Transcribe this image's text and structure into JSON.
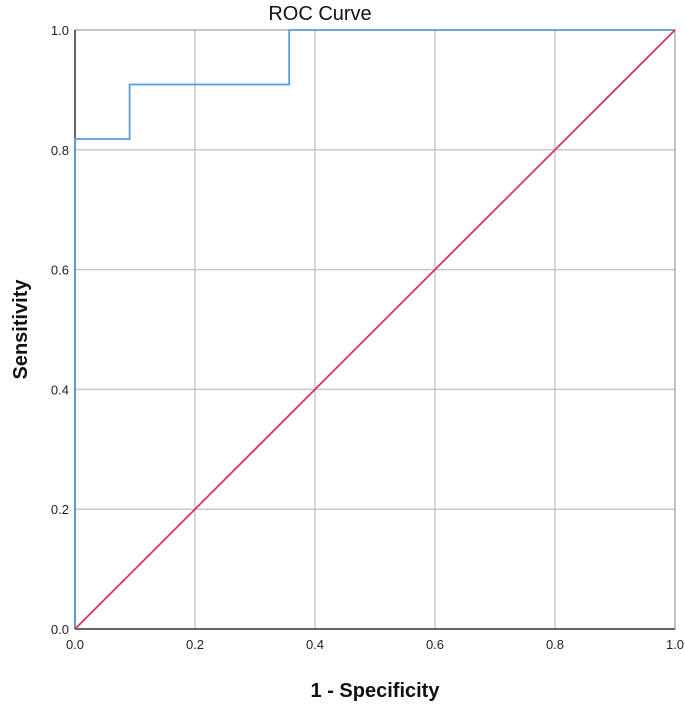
{
  "chart_data": {
    "type": "line",
    "title": "ROC Curve",
    "xlabel": "1 - Specificity",
    "ylabel": "Sensitivity",
    "xlim": [
      0,
      1
    ],
    "ylim": [
      0,
      1
    ],
    "grid": true,
    "x_ticks": [
      "0.0",
      "0.2",
      "0.4",
      "0.6",
      "0.8",
      "1.0"
    ],
    "y_ticks": [
      "0.0",
      "0.2",
      "0.4",
      "0.6",
      "0.8",
      "1.0"
    ],
    "series": [
      {
        "color": "#5b9bd5",
        "x": [
          0.0,
          0.0,
          0.091,
          0.091,
          0.357,
          0.357,
          1.0
        ],
        "y": [
          0.0,
          0.818,
          0.818,
          0.909,
          0.909,
          1.0,
          1.0
        ]
      },
      {
        "color": "#d6336c",
        "x": [
          0.0,
          1.0
        ],
        "y": [
          0.0,
          1.0
        ]
      }
    ]
  }
}
